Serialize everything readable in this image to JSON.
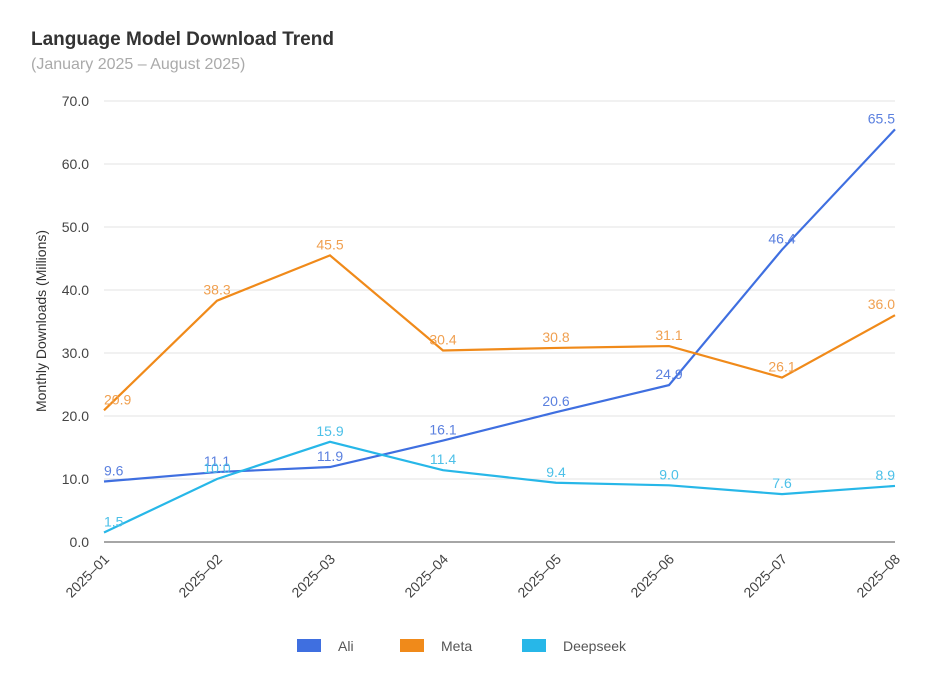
{
  "chart_data": {
    "type": "line",
    "title": "Language Model Download Trend",
    "subtitle": "(January 2025 – August 2025)",
    "xlabel": "",
    "ylabel": "Monthly Downloads (Millions)",
    "ylim": [
      0,
      70
    ],
    "yticks": [
      "0.0",
      "10.0",
      "20.0",
      "30.0",
      "40.0",
      "50.0",
      "60.0",
      "70.0"
    ],
    "ytick_values": [
      0,
      10,
      20,
      30,
      40,
      50,
      60,
      70
    ],
    "grid": true,
    "legend_position": "bottom-center",
    "categories": [
      "2025–01",
      "2025–02",
      "2025–03",
      "2025–04",
      "2025–05",
      "2025–06",
      "2025–07",
      "2025–08"
    ],
    "series": [
      {
        "name": "Ali",
        "color": "#3f6fe0",
        "label_color": "#5b80df",
        "values": [
          9.6,
          11.1,
          11.9,
          16.1,
          20.6,
          24.9,
          46.4,
          65.5
        ]
      },
      {
        "name": "Meta",
        "color": "#f08a1a",
        "label_color": "#f0a050",
        "values": [
          20.9,
          38.3,
          45.5,
          30.4,
          30.8,
          31.1,
          26.1,
          36.0
        ]
      },
      {
        "name": "Deepseek",
        "color": "#27b7e8",
        "label_color": "#4cc0e8",
        "values": [
          1.5,
          10.0,
          15.9,
          11.4,
          9.4,
          9.0,
          7.6,
          8.9
        ]
      }
    ]
  }
}
